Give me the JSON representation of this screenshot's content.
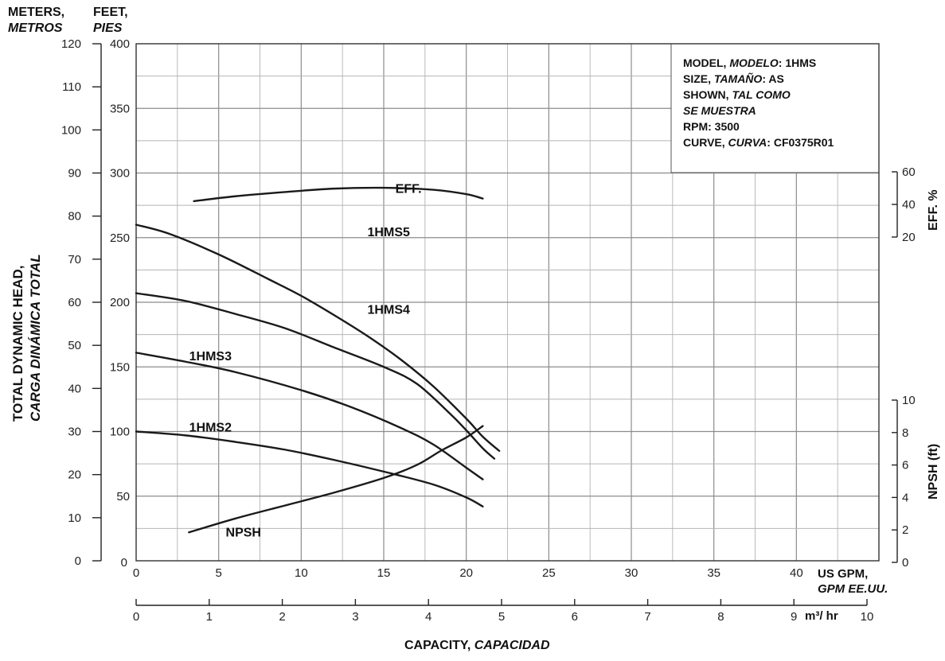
{
  "labels": {
    "left_unit_top": "METERS,",
    "left_unit_bottom": "METROS",
    "feet_unit_top": "FEET,",
    "feet_unit_bottom": "PIES",
    "y_title_line1": "TOTAL DYNAMIC HEAD,",
    "y_title_line2": "CARGA DINÁMICA TOTAL",
    "eff_axis": "EFF. %",
    "npsh_axis": "NPSH (ft)",
    "gpm_line1": "US GPM,",
    "gpm_line2": "GPM EE.UU.",
    "m3hr": "m³/ hr",
    "x_title_main": "CAPACITY,",
    "x_title_alt": "CAPACIDAD"
  },
  "info": {
    "line1_a": "MODEL,",
    "line1_b": "MODELO",
    "line1_c": ": 1HMS",
    "line2_a": "SIZE,",
    "line2_b": "TAMAÑO",
    "line2_c": ": AS",
    "line3_a": "SHOWN,",
    "line3_b": "TAL COMO",
    "line4": "SE MUESTRA",
    "line5": "RPM: 3500",
    "line6_a": "CURVE,",
    "line6_b": "CURVA",
    "line6_c": ": CF0375R01"
  },
  "chart_data": {
    "type": "line",
    "x_axis": {
      "label": "US GPM",
      "range": [
        0,
        45
      ],
      "ticks": [
        0,
        5,
        10,
        15,
        20,
        25,
        30,
        35,
        40
      ]
    },
    "x_axis_secondary": {
      "label": "m³/ hr",
      "range": [
        0,
        10
      ],
      "ticks": [
        0,
        1,
        2,
        3,
        4,
        5,
        6,
        7,
        8,
        9,
        10
      ]
    },
    "y_axis_feet": {
      "label": "FEET",
      "range": [
        0,
        400
      ],
      "ticks": [
        0,
        50,
        100,
        150,
        200,
        250,
        300,
        350,
        400
      ]
    },
    "y_axis_meters": {
      "label": "METERS",
      "range": [
        0,
        120
      ],
      "ticks": [
        0,
        10,
        20,
        30,
        40,
        50,
        60,
        70,
        80,
        90,
        100,
        110,
        120
      ]
    },
    "y_axis_eff": {
      "label": "EFF. %",
      "ticks": [
        20,
        40,
        60
      ]
    },
    "y_axis_npsh": {
      "label": "NPSH (ft)",
      "ticks": [
        0,
        2,
        4,
        6,
        8,
        10
      ]
    },
    "grid": true,
    "series": [
      {
        "name": "1HMS5",
        "axis": "feet",
        "label_at": [
          15.3,
          251
        ],
        "points": [
          [
            0,
            260
          ],
          [
            2,
            253
          ],
          [
            5,
            237
          ],
          [
            8,
            218
          ],
          [
            10,
            205
          ],
          [
            12,
            190
          ],
          [
            14,
            174
          ],
          [
            16,
            156
          ],
          [
            18,
            135
          ],
          [
            20,
            110
          ],
          [
            21,
            96
          ],
          [
            22,
            85
          ]
        ]
      },
      {
        "name": "1HMS4",
        "axis": "feet",
        "label_at": [
          15.3,
          191
        ],
        "points": [
          [
            0,
            207
          ],
          [
            3,
            201
          ],
          [
            6,
            191
          ],
          [
            9,
            180
          ],
          [
            12,
            165
          ],
          [
            15,
            150
          ],
          [
            17,
            137
          ],
          [
            19,
            114
          ],
          [
            20,
            101
          ],
          [
            21,
            87
          ],
          [
            21.7,
            79
          ]
        ]
      },
      {
        "name": "1HMS3",
        "axis": "feet",
        "label_at": [
          4.5,
          155
        ],
        "points": [
          [
            0,
            161
          ],
          [
            3,
            154
          ],
          [
            6,
            146
          ],
          [
            10,
            132
          ],
          [
            13,
            119
          ],
          [
            16,
            103
          ],
          [
            18,
            90
          ],
          [
            20,
            72
          ],
          [
            21,
            63
          ]
        ]
      },
      {
        "name": "1HMS2",
        "axis": "feet",
        "label_at": [
          4.5,
          100
        ],
        "points": [
          [
            0,
            100
          ],
          [
            3,
            97
          ],
          [
            6,
            92
          ],
          [
            9,
            86
          ],
          [
            12,
            78
          ],
          [
            15,
            69
          ],
          [
            18,
            59
          ],
          [
            20,
            49
          ],
          [
            21,
            42
          ]
        ]
      },
      {
        "name": "EFF.",
        "axis": "eff",
        "label_at": [
          16.5,
          47
        ],
        "points": [
          [
            3.5,
            42
          ],
          [
            6,
            45
          ],
          [
            9,
            47.6
          ],
          [
            12,
            49.7
          ],
          [
            15,
            50.2
          ],
          [
            18,
            49
          ],
          [
            20,
            46.3
          ],
          [
            21,
            43.6
          ]
        ]
      },
      {
        "name": "NPSH",
        "axis": "npsh",
        "label_at": [
          6.5,
          1.6
        ],
        "points": [
          [
            3.2,
            1.85
          ],
          [
            6,
            2.7
          ],
          [
            9,
            3.5
          ],
          [
            12,
            4.3
          ],
          [
            15,
            5.2
          ],
          [
            17,
            6.0
          ],
          [
            18.5,
            6.9
          ],
          [
            20,
            7.7
          ],
          [
            21,
            8.4
          ]
        ]
      }
    ]
  }
}
